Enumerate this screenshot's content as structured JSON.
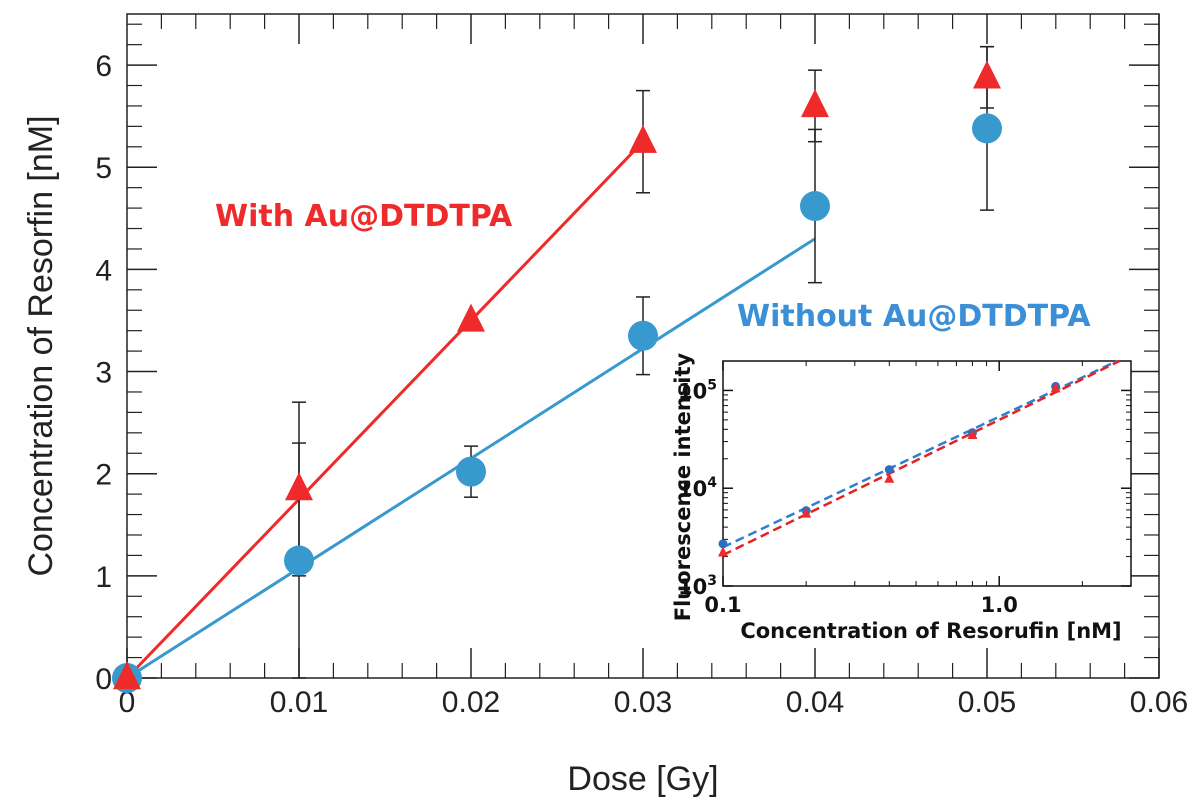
{
  "chart_data": [
    {
      "type": "scatter",
      "title": "",
      "xlabel": "Dose [Gy]",
      "ylabel": "Concentration of Resorfin [nM]",
      "xlim": [
        0,
        0.06
      ],
      "ylim": [
        0,
        6.5
      ],
      "x_ticks": [
        0,
        0.01,
        0.02,
        0.03,
        0.04,
        0.05,
        0.06
      ],
      "x_tick_labels": [
        "0",
        "0.01",
        "0.02",
        "0.03",
        "0.04",
        "0.05",
        "0.06"
      ],
      "y_ticks": [
        0,
        1,
        2,
        3,
        4,
        5,
        6
      ],
      "y_tick_labels": [
        "0",
        "1",
        "2",
        "3",
        "4",
        "5",
        "6"
      ],
      "grid": false,
      "series": [
        {
          "name": "With Au@DTDTPA",
          "color": "#ee2a2a",
          "marker": "triangle",
          "points": [
            {
              "x": 0.0,
              "y": 0.0,
              "err": 0
            },
            {
              "x": 0.01,
              "y": 1.85,
              "err": 0.85
            },
            {
              "x": 0.02,
              "y": 3.5,
              "err": 0
            },
            {
              "x": 0.03,
              "y": 5.25,
              "err": 0.5
            },
            {
              "x": 0.04,
              "y": 5.6,
              "err": 0.35
            },
            {
              "x": 0.05,
              "y": 5.88,
              "err": 0.3
            }
          ],
          "fit": {
            "x": [
              0.0,
              0.03
            ],
            "y": [
              0.0,
              5.25
            ]
          }
        },
        {
          "name": "Without Au@DTDTPA",
          "color": "#3899cf",
          "marker": "circle",
          "points": [
            {
              "x": 0.0,
              "y": 0.0,
              "err": 0
            },
            {
              "x": 0.01,
              "y": 1.15,
              "err": 1.15
            },
            {
              "x": 0.02,
              "y": 2.02,
              "err": 0.25
            },
            {
              "x": 0.03,
              "y": 3.35,
              "err": 0.38
            },
            {
              "x": 0.04,
              "y": 4.62,
              "err": 0.75
            },
            {
              "x": 0.05,
              "y": 5.38,
              "err": 0.8
            }
          ],
          "fit": {
            "x": [
              0.0,
              0.04
            ],
            "y": [
              0.0,
              4.3
            ]
          }
        }
      ]
    },
    {
      "type": "scatter",
      "title": "",
      "xlabel": "Concentration of Resorufin [nM]",
      "ylabel": "Fluorescence intensity",
      "x_scale": "log",
      "y_scale": "log",
      "xlim": [
        0.1,
        3.0
      ],
      "ylim": [
        1000,
        200000
      ],
      "x_tick_labels": [
        "0.1",
        "1.0"
      ],
      "y_tick_labels": [
        {
          "base": "10",
          "exp": "3"
        },
        {
          "base": "10",
          "exp": "4"
        },
        {
          "base": "10",
          "exp": "5"
        }
      ],
      "series": [
        {
          "color": "#2d6fc0",
          "marker": "circle",
          "points": [
            {
              "x": 0.1,
              "y": 2700
            },
            {
              "x": 0.2,
              "y": 5900
            },
            {
              "x": 0.4,
              "y": 15500
            },
            {
              "x": 0.8,
              "y": 37000
            },
            {
              "x": 1.6,
              "y": 110000
            }
          ],
          "fit_dash": "blue"
        },
        {
          "color": "#ee2a2a",
          "marker": "triangle",
          "points": [
            {
              "x": 0.1,
              "y": 2200
            },
            {
              "x": 0.2,
              "y": 5500
            },
            {
              "x": 0.4,
              "y": 12500
            },
            {
              "x": 0.8,
              "y": 35000
            },
            {
              "x": 1.6,
              "y": 105000
            }
          ],
          "fit_dash": "red"
        }
      ]
    }
  ]
}
